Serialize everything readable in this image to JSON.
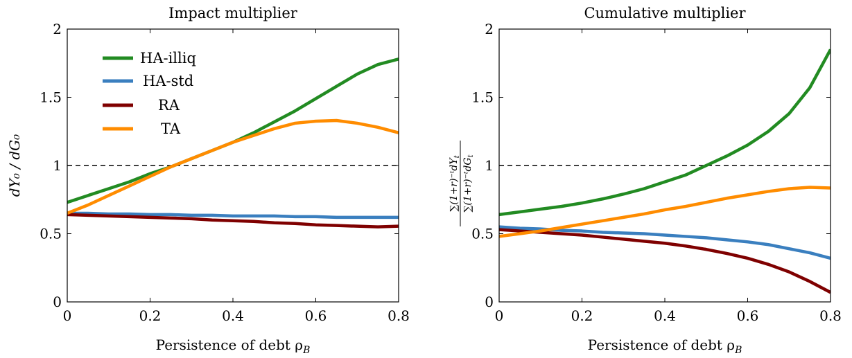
{
  "colors": {
    "ha_illiq": "#228b22",
    "ha_std": "#3a7fbf",
    "ra": "#7f0000",
    "ta": "#ff8c00",
    "reference": "#000000"
  },
  "chart_data": [
    {
      "type": "line",
      "title": "Impact multiplier",
      "xlabel": "Persistence of debt ρ",
      "xlabel_sub": "B",
      "ylabel": "dY₀ / dG₀",
      "xlim": [
        0,
        0.8
      ],
      "ylim": [
        0,
        2
      ],
      "xticks": [
        "0",
        "0.2",
        "0.4",
        "0.6",
        "0.8"
      ],
      "yticks": [
        "0",
        "0.5",
        "1",
        "1.5",
        "2"
      ],
      "grid": false,
      "legend_position": "top-left",
      "reference_line": {
        "y": 1,
        "style": "dashed"
      },
      "x": [
        0,
        0.05,
        0.1,
        0.15,
        0.2,
        0.25,
        0.3,
        0.35,
        0.4,
        0.45,
        0.5,
        0.55,
        0.6,
        0.65,
        0.7,
        0.75,
        0.8
      ],
      "series": [
        {
          "name": "HA-illiq",
          "values": [
            0.73,
            0.78,
            0.83,
            0.88,
            0.94,
            0.99,
            1.05,
            1.11,
            1.17,
            1.24,
            1.32,
            1.4,
            1.49,
            1.58,
            1.67,
            1.74,
            1.78
          ]
        },
        {
          "name": "HA-std",
          "values": [
            0.65,
            0.65,
            0.645,
            0.645,
            0.64,
            0.64,
            0.635,
            0.635,
            0.63,
            0.63,
            0.63,
            0.625,
            0.625,
            0.62,
            0.62,
            0.62,
            0.62
          ]
        },
        {
          "name": "RA",
          "values": [
            0.64,
            0.635,
            0.63,
            0.625,
            0.62,
            0.615,
            0.61,
            0.6,
            0.595,
            0.59,
            0.58,
            0.575,
            0.565,
            0.56,
            0.555,
            0.55,
            0.555
          ]
        },
        {
          "name": "TA",
          "values": [
            0.65,
            0.71,
            0.78,
            0.85,
            0.92,
            0.99,
            1.05,
            1.11,
            1.17,
            1.22,
            1.27,
            1.31,
            1.325,
            1.33,
            1.31,
            1.28,
            1.24
          ]
        }
      ]
    },
    {
      "type": "line",
      "title": "Cumulative multiplier",
      "xlabel": "Persistence of debt ρ",
      "xlabel_sub": "B",
      "ylabel_num": "∑(1+r)⁻ᵗdY",
      "ylabel_den": "∑(1+r)⁻ᵗdG",
      "ylabel_sub": "t",
      "xlim": [
        0,
        0.8
      ],
      "ylim": [
        0,
        2
      ],
      "xticks": [
        "0",
        "0.2",
        "0.4",
        "0.6",
        "0.8"
      ],
      "yticks": [
        "0",
        "0.5",
        "1",
        "1.5",
        "2"
      ],
      "grid": false,
      "reference_line": {
        "y": 1,
        "style": "dashed"
      },
      "x": [
        0,
        0.05,
        0.1,
        0.15,
        0.2,
        0.25,
        0.3,
        0.35,
        0.4,
        0.45,
        0.5,
        0.55,
        0.6,
        0.65,
        0.7,
        0.75,
        0.8
      ],
      "series": [
        {
          "name": "HA-illiq",
          "values": [
            0.64,
            0.66,
            0.68,
            0.7,
            0.725,
            0.755,
            0.79,
            0.83,
            0.88,
            0.93,
            1.0,
            1.07,
            1.15,
            1.25,
            1.38,
            1.57,
            1.85
          ]
        },
        {
          "name": "HA-std",
          "values": [
            0.55,
            0.54,
            0.535,
            0.525,
            0.52,
            0.51,
            0.505,
            0.5,
            0.49,
            0.48,
            0.47,
            0.455,
            0.44,
            0.42,
            0.39,
            0.36,
            0.32
          ]
        },
        {
          "name": "RA",
          "values": [
            0.53,
            0.52,
            0.51,
            0.5,
            0.49,
            0.475,
            0.46,
            0.445,
            0.43,
            0.41,
            0.385,
            0.355,
            0.32,
            0.275,
            0.22,
            0.15,
            0.07
          ]
        },
        {
          "name": "TA",
          "values": [
            0.48,
            0.5,
            0.52,
            0.545,
            0.57,
            0.595,
            0.62,
            0.645,
            0.675,
            0.7,
            0.73,
            0.76,
            0.785,
            0.81,
            0.83,
            0.84,
            0.835
          ]
        }
      ]
    }
  ]
}
